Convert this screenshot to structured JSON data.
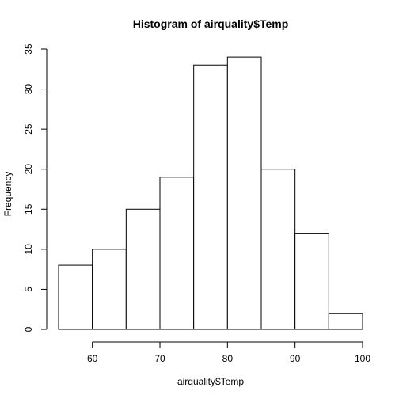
{
  "chart_data": {
    "type": "bar",
    "title": "Histogram of airquality$Temp",
    "xlabel": "airquality$Temp",
    "ylabel": "Frequency",
    "bins": [
      {
        "from": 55,
        "to": 60,
        "count": 8
      },
      {
        "from": 60,
        "to": 65,
        "count": 10
      },
      {
        "from": 65,
        "to": 70,
        "count": 15
      },
      {
        "from": 70,
        "to": 75,
        "count": 19
      },
      {
        "from": 75,
        "to": 80,
        "count": 33
      },
      {
        "from": 80,
        "to": 85,
        "count": 34
      },
      {
        "from": 85,
        "to": 90,
        "count": 20
      },
      {
        "from": 90,
        "to": 95,
        "count": 12
      },
      {
        "from": 95,
        "to": 100,
        "count": 2
      }
    ],
    "xlim": [
      55,
      100
    ],
    "ylim": [
      0,
      35
    ],
    "x_ticks": [
      60,
      70,
      80,
      90,
      100
    ],
    "y_ticks": [
      0,
      5,
      10,
      15,
      20,
      25,
      30,
      35
    ],
    "grid": false,
    "bar_fill": "#ffffff",
    "bar_stroke": "#000000"
  }
}
